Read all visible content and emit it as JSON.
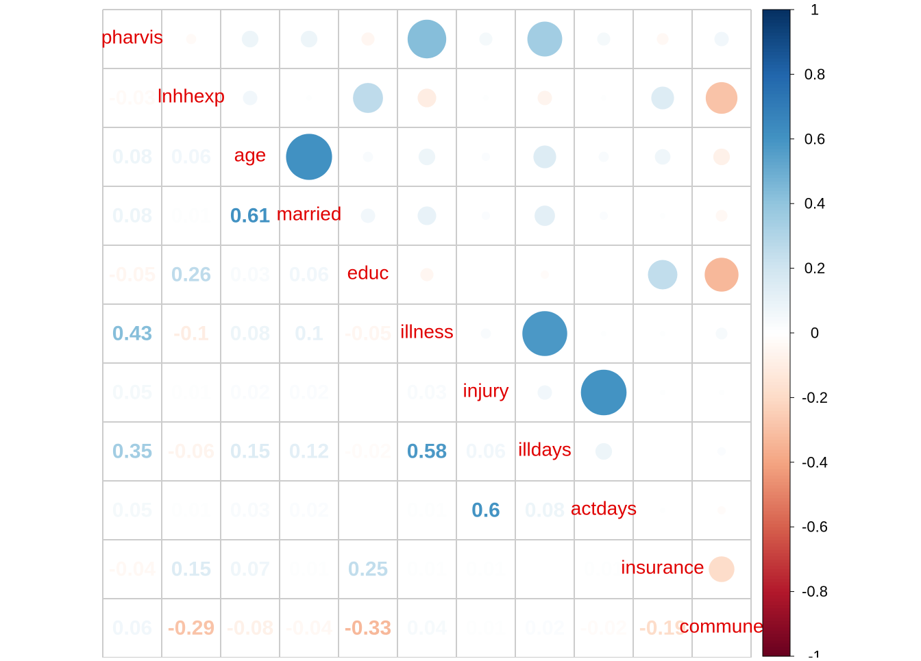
{
  "chart_data": {
    "type": "correlation",
    "variables": [
      "pharvis",
      "lnhhexp",
      "age",
      "married",
      "educ",
      "illness",
      "injury",
      "illdays",
      "actdays",
      "insurance",
      "commune"
    ],
    "values": [
      [
        -0.03
      ],
      [
        0.08,
        0.06
      ],
      [
        0.08,
        0.01,
        0.61
      ],
      [
        -0.05,
        0.26,
        0.03,
        0.06
      ],
      [
        0.43,
        -0.1,
        0.08,
        0.1,
        -0.05
      ],
      [
        0.05,
        0.01,
        0.02,
        0.02,
        0.0,
        0.03
      ],
      [
        0.35,
        -0.06,
        0.15,
        0.12,
        -0.02,
        0.58,
        0.06
      ],
      [
        0.05,
        0.01,
        0.03,
        0.02,
        0.0,
        0.01,
        0.6,
        0.08
      ],
      [
        -0.04,
        0.15,
        0.07,
        0.01,
        0.25,
        0.01,
        0.01,
        0.0,
        0.01
      ],
      [
        0.06,
        -0.29,
        -0.08,
        -0.04,
        -0.33,
        0.04,
        0.01,
        0.02,
        -0.02,
        -0.19
      ]
    ],
    "colormap": [
      "#67001F",
      "#B2182B",
      "#D6604D",
      "#F4A582",
      "#FDDBC7",
      "#FFFFFF",
      "#D1E5F0",
      "#92C5DE",
      "#4393C3",
      "#2166AC",
      "#053061"
    ],
    "colorbar_lim": [
      -1,
      1
    ],
    "colorbar_ticks": [
      1,
      0.8,
      0.6,
      0.4,
      0.2,
      0,
      -0.2,
      -0.4,
      -0.6,
      -0.8,
      -1
    ]
  }
}
